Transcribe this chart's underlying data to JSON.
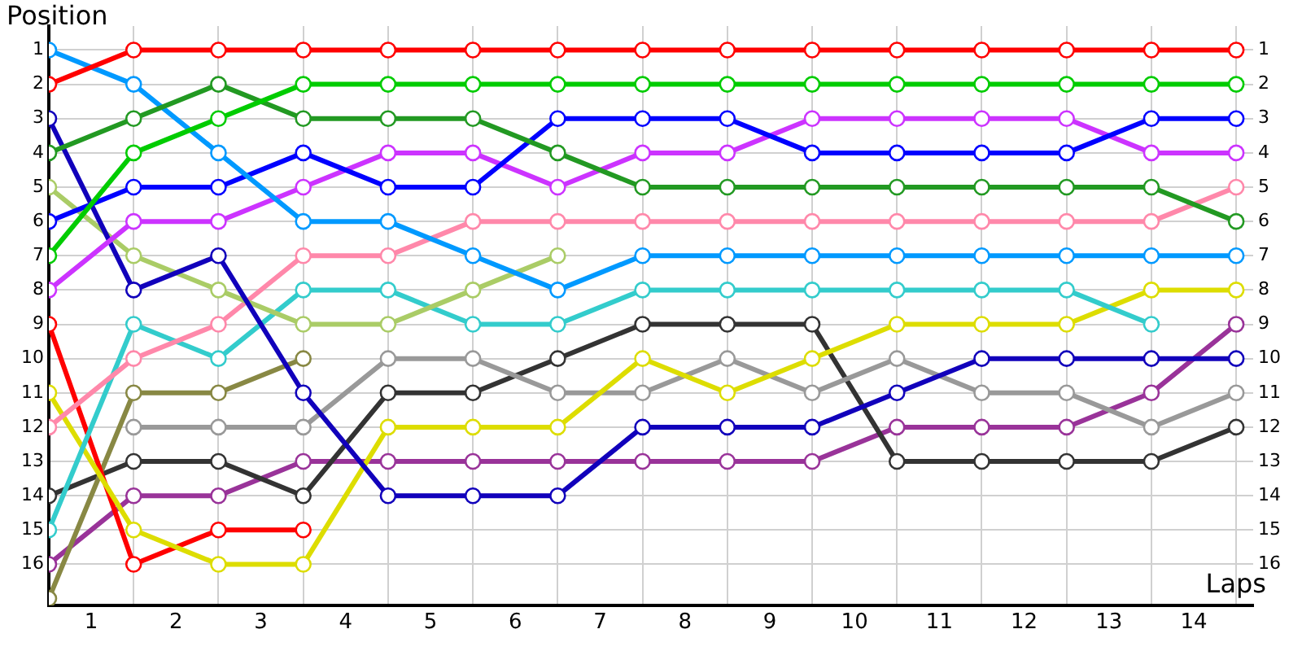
{
  "chart_data": {
    "type": "line",
    "xlabel": "Laps",
    "ylabel": "Position",
    "x": [
      0,
      1,
      2,
      3,
      4,
      5,
      6,
      7,
      8,
      9,
      10,
      11,
      12,
      13,
      14
    ],
    "series": [
      {
        "color": "#ff0000",
        "values": [
          2,
          1,
          1,
          1,
          1,
          1,
          1,
          1,
          1,
          1,
          1,
          1,
          1,
          1,
          1
        ]
      },
      {
        "color": "#00cc00",
        "values": [
          7,
          4,
          3,
          2,
          2,
          2,
          2,
          2,
          2,
          2,
          2,
          2,
          2,
          2,
          2
        ]
      },
      {
        "color": "#229922",
        "values": [
          4,
          3,
          2,
          3,
          3,
          3,
          4,
          5,
          5,
          5,
          5,
          5,
          5,
          5,
          6
        ]
      },
      {
        "color": "#0099ff",
        "values": [
          1,
          2,
          4,
          6,
          6,
          7,
          8,
          7,
          7,
          7,
          7,
          7,
          7,
          7,
          7
        ]
      },
      {
        "color": "#0000ff",
        "values": [
          6,
          5,
          5,
          4,
          5,
          5,
          3,
          3,
          3,
          4,
          4,
          4,
          4,
          3,
          3
        ]
      },
      {
        "color": "#cc33ff",
        "values": [
          8,
          6,
          6,
          5,
          4,
          4,
          5,
          4,
          4,
          3,
          3,
          3,
          3,
          4,
          4
        ]
      },
      {
        "color": "#1100bb",
        "values": [
          3,
          8,
          7,
          11,
          14,
          14,
          14,
          12,
          12,
          12,
          11,
          10,
          10,
          10,
          10
        ]
      },
      {
        "color": "#aacc66",
        "values": [
          5,
          7,
          8,
          9,
          9,
          8,
          7,
          null,
          null,
          null,
          null,
          null,
          null,
          null,
          null
        ]
      },
      {
        "color": "#ff88aa",
        "values": [
          12,
          10,
          9,
          7,
          7,
          6,
          6,
          6,
          6,
          6,
          6,
          6,
          6,
          6,
          5
        ]
      },
      {
        "color": "#33cccc",
        "values": [
          15,
          9,
          10,
          8,
          8,
          9,
          9,
          8,
          8,
          8,
          8,
          8,
          8,
          9,
          null
        ]
      },
      {
        "color": "#dddd00",
        "values": [
          11,
          15,
          16,
          16,
          12,
          12,
          12,
          10,
          11,
          10,
          9,
          9,
          9,
          8,
          8
        ]
      },
      {
        "color": "#ff0000",
        "values": [
          9,
          16,
          15,
          15,
          null,
          null,
          null,
          null,
          null,
          null,
          null,
          null,
          null,
          null,
          null
        ]
      },
      {
        "color": "#888844",
        "values": [
          17,
          11,
          11,
          10,
          null,
          null,
          null,
          null,
          null,
          null,
          null,
          null,
          null,
          null,
          null
        ]
      },
      {
        "color": "#999999",
        "values": [
          null,
          12,
          12,
          12,
          10,
          10,
          11,
          11,
          10,
          11,
          10,
          11,
          11,
          12,
          11
        ]
      },
      {
        "color": "#333333",
        "values": [
          14,
          13,
          13,
          14,
          11,
          11,
          10,
          9,
          9,
          9,
          13,
          13,
          13,
          13,
          12
        ]
      },
      {
        "color": "#993399",
        "values": [
          16,
          14,
          14,
          13,
          13,
          13,
          13,
          13,
          13,
          13,
          12,
          12,
          12,
          11,
          9
        ]
      }
    ],
    "xlim": [
      0,
      14.2
    ],
    "xticks": [
      {
        "value": 0,
        "label": null
      },
      {
        "value": 0.5,
        "label": "1"
      },
      {
        "value": 1,
        "label": null
      },
      {
        "value": 1.5,
        "label": "2"
      },
      {
        "value": 2,
        "label": null
      },
      {
        "value": 2.5,
        "label": "3"
      },
      {
        "value": 3,
        "label": null
      },
      {
        "value": 3.5,
        "label": "4"
      },
      {
        "value": 4,
        "label": null
      },
      {
        "value": 4.5,
        "label": "5"
      },
      {
        "value": 5,
        "label": null
      },
      {
        "value": 5.5,
        "label": "6"
      },
      {
        "value": 6,
        "label": null
      },
      {
        "value": 6.5,
        "label": "7"
      },
      {
        "value": 7,
        "label": null
      },
      {
        "value": 7.5,
        "label": "8"
      },
      {
        "value": 8,
        "label": null
      },
      {
        "value": 8.5,
        "label": "9"
      },
      {
        "value": 9,
        "label": null
      },
      {
        "value": 9.5,
        "label": "10"
      },
      {
        "value": 10,
        "label": null
      },
      {
        "value": 10.5,
        "label": "11"
      },
      {
        "value": 11,
        "label": null
      },
      {
        "value": 11.5,
        "label": "12"
      },
      {
        "value": 12,
        "label": null
      },
      {
        "value": 12.5,
        "label": "13"
      },
      {
        "value": 13,
        "label": null
      },
      {
        "value": 13.5,
        "label": "14"
      },
      {
        "value": 14,
        "label": null
      }
    ],
    "ylim": [
      17.2,
      0.3
    ],
    "yticks": [
      1,
      2,
      3,
      4,
      5,
      6,
      7,
      8,
      9,
      10,
      11,
      12,
      13,
      14,
      15,
      16
    ],
    "y2lim": [
      17.2,
      0.3
    ],
    "y2ticks": [
      1,
      2,
      3,
      4,
      5,
      6,
      7,
      8,
      9,
      10,
      11,
      12,
      13,
      14,
      15,
      16
    ],
    "grid": true,
    "marker": "circle"
  }
}
